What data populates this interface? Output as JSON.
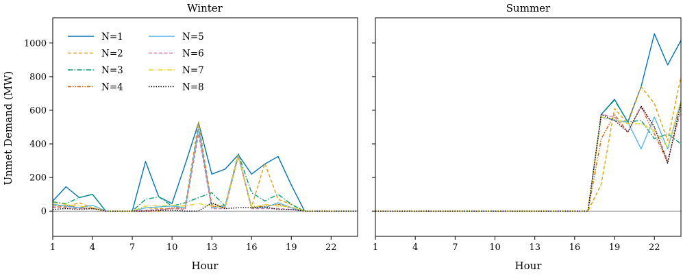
{
  "figure": {
    "ylabel": "Unmet Demand (MW)"
  },
  "chart_data": [
    {
      "type": "line",
      "title": "Winter",
      "xlabel": "Hour",
      "ylabel": "Unmet Demand (MW)",
      "xlim": [
        1,
        24
      ],
      "ylim": [
        -150,
        1150
      ],
      "xticks": [
        1,
        4,
        7,
        10,
        13,
        16,
        19,
        22
      ],
      "yticks": [
        0,
        200,
        400,
        600,
        800,
        1000
      ],
      "legend": "top-left",
      "x": [
        1,
        2,
        3,
        4,
        5,
        6,
        7,
        8,
        9,
        10,
        11,
        12,
        13,
        14,
        15,
        16,
        17,
        18,
        19,
        20,
        21,
        22,
        23,
        24
      ],
      "series": [
        {
          "name": "N=1",
          "color": "#0072B2",
          "dash": "none",
          "values": [
            60,
            145,
            80,
            100,
            0,
            0,
            0,
            295,
            85,
            45,
            280,
            525,
            220,
            250,
            335,
            220,
            280,
            325,
            155,
            0,
            0,
            0,
            0,
            0
          ]
        },
        {
          "name": "N=2",
          "color": "#E69F00",
          "dash": "5,3",
          "values": [
            35,
            25,
            50,
            20,
            0,
            0,
            0,
            20,
            15,
            15,
            35,
            530,
            40,
            30,
            340,
            25,
            285,
            70,
            40,
            0,
            0,
            0,
            0,
            0
          ]
        },
        {
          "name": "N=3",
          "color": "#009E73",
          "dash": "7,2.5,1.5,2.5",
          "values": [
            55,
            45,
            80,
            100,
            0,
            0,
            0,
            70,
            85,
            30,
            50,
            80,
            110,
            30,
            340,
            110,
            60,
            100,
            40,
            0,
            0,
            0,
            0,
            0
          ]
        },
        {
          "name": "N=4",
          "color": "#D55E00",
          "dash": "5,2,1.5,2,1.5,2",
          "values": [
            20,
            35,
            20,
            15,
            0,
            0,
            0,
            0,
            0,
            20,
            15,
            500,
            30,
            20,
            325,
            25,
            30,
            40,
            20,
            0,
            0,
            0,
            0,
            0
          ]
        },
        {
          "name": "N=5",
          "color": "#56B4E9",
          "dash": "none",
          "values": [
            40,
            30,
            20,
            35,
            0,
            0,
            0,
            20,
            25,
            30,
            20,
            490,
            20,
            30,
            330,
            20,
            20,
            50,
            20,
            0,
            0,
            0,
            0,
            0
          ]
        },
        {
          "name": "N=6",
          "color": "#CC79A7",
          "dash": "5,2.5",
          "values": [
            25,
            20,
            15,
            20,
            0,
            0,
            0,
            5,
            10,
            15,
            10,
            460,
            15,
            15,
            325,
            15,
            15,
            15,
            10,
            0,
            0,
            0,
            0,
            0
          ]
        },
        {
          "name": "N=7",
          "color": "#E8D21E",
          "dash": "7,2.5,1.5,2.5",
          "values": [
            50,
            40,
            30,
            20,
            0,
            0,
            0,
            30,
            35,
            35,
            30,
            45,
            30,
            20,
            330,
            20,
            40,
            30,
            25,
            0,
            0,
            0,
            0,
            0
          ]
        },
        {
          "name": "N=8",
          "color": "#000000",
          "dash": "1.5,2",
          "values": [
            10,
            15,
            10,
            15,
            0,
            0,
            0,
            0,
            5,
            5,
            0,
            0,
            50,
            15,
            20,
            20,
            25,
            10,
            10,
            0,
            0,
            0,
            0,
            0
          ]
        }
      ]
    },
    {
      "type": "line",
      "title": "Summer",
      "xlabel": "Hour",
      "xlim": [
        1,
        24
      ],
      "ylim": [
        -150,
        1150
      ],
      "xticks": [
        1,
        4,
        7,
        10,
        13,
        16,
        19,
        22
      ],
      "x": [
        1,
        2,
        3,
        4,
        5,
        6,
        7,
        8,
        9,
        10,
        11,
        12,
        13,
        14,
        15,
        16,
        17,
        18,
        19,
        20,
        21,
        22,
        23,
        24
      ],
      "series": [
        {
          "name": "N=1",
          "color": "#0072B2",
          "dash": "none",
          "values": [
            0,
            0,
            0,
            0,
            0,
            0,
            0,
            0,
            0,
            0,
            0,
            0,
            0,
            0,
            0,
            0,
            0,
            575,
            665,
            530,
            740,
            1055,
            870,
            1015
          ]
        },
        {
          "name": "N=2",
          "color": "#E69F00",
          "dash": "5,3",
          "values": [
            0,
            0,
            0,
            0,
            0,
            0,
            0,
            0,
            0,
            0,
            0,
            0,
            0,
            0,
            0,
            0,
            0,
            160,
            610,
            520,
            740,
            640,
            420,
            800
          ]
        },
        {
          "name": "N=3",
          "color": "#009E73",
          "dash": "7,2.5,1.5,2.5",
          "values": [
            0,
            0,
            0,
            0,
            0,
            0,
            0,
            0,
            0,
            0,
            0,
            0,
            0,
            0,
            0,
            0,
            0,
            575,
            660,
            530,
            540,
            430,
            460,
            400
          ]
        },
        {
          "name": "N=4",
          "color": "#D55E00",
          "dash": "5,2,1.5,2,1.5,2",
          "values": [
            0,
            0,
            0,
            0,
            0,
            0,
            0,
            0,
            0,
            0,
            0,
            0,
            0,
            0,
            0,
            0,
            0,
            430,
            575,
            470,
            620,
            460,
            290,
            640
          ]
        },
        {
          "name": "N=5",
          "color": "#56B4E9",
          "dash": "none",
          "values": [
            0,
            0,
            0,
            0,
            0,
            0,
            0,
            0,
            0,
            0,
            0,
            0,
            0,
            0,
            0,
            0,
            0,
            560,
            540,
            530,
            370,
            560,
            370,
            650
          ]
        },
        {
          "name": "N=6",
          "color": "#CC79A7",
          "dash": "5,2.5",
          "values": [
            0,
            0,
            0,
            0,
            0,
            0,
            0,
            0,
            0,
            0,
            0,
            0,
            0,
            0,
            0,
            0,
            0,
            575,
            560,
            470,
            620,
            500,
            300,
            600
          ]
        },
        {
          "name": "N=7",
          "color": "#E8D21E",
          "dash": "7,2.5,1.5,2.5",
          "values": [
            0,
            0,
            0,
            0,
            0,
            0,
            0,
            0,
            0,
            0,
            0,
            0,
            0,
            0,
            0,
            0,
            0,
            560,
            545,
            520,
            520,
            480,
            380,
            660
          ]
        },
        {
          "name": "N=8",
          "color": "#000000",
          "dash": "1.5,2",
          "values": [
            0,
            0,
            0,
            0,
            0,
            0,
            0,
            0,
            0,
            0,
            0,
            0,
            0,
            0,
            0,
            0,
            0,
            575,
            540,
            470,
            625,
            500,
            285,
            640
          ]
        }
      ]
    }
  ]
}
